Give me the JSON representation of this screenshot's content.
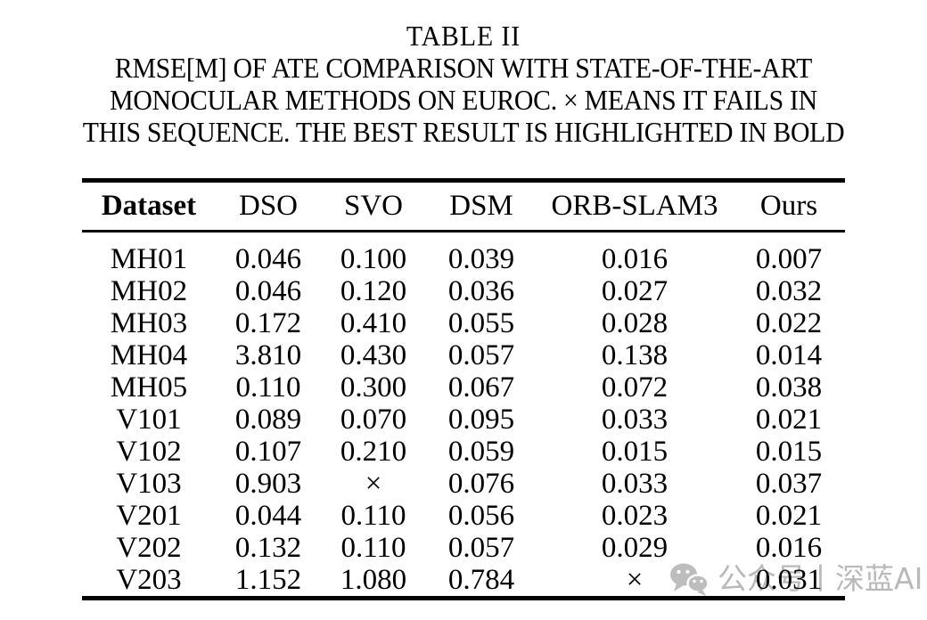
{
  "caption": {
    "label": "TABLE II",
    "line1": "RMSE[M] OF ATE COMPARISON WITH STATE-OF-THE-ART",
    "line2": "MONOCULAR METHODS ON EUROC. × MEANS IT FAILS IN",
    "line3": "THIS SEQUENCE. THE BEST RESULT IS HIGHLIGHTED IN BOLD"
  },
  "table": {
    "columns": [
      {
        "label": "Dataset"
      },
      {
        "label": "DSO"
      },
      {
        "label": "SVO"
      },
      {
        "label": "DSM"
      },
      {
        "label": "ORB-SLAM3"
      },
      {
        "label": "Ours"
      }
    ],
    "rows": [
      {
        "cells": [
          {
            "text": "MH01"
          },
          {
            "text": "0.046"
          },
          {
            "text": "0.100"
          },
          {
            "text": "0.039"
          },
          {
            "text": "0.016"
          },
          {
            "text": "0.007",
            "bold": true
          }
        ]
      },
      {
        "cells": [
          {
            "text": "MH02"
          },
          {
            "text": "0.046"
          },
          {
            "text": "0.120"
          },
          {
            "text": "0.036"
          },
          {
            "text": "0.027",
            "bold": true
          },
          {
            "text": "0.032"
          }
        ]
      },
      {
        "cells": [
          {
            "text": "MH03"
          },
          {
            "text": "0.172"
          },
          {
            "text": "0.410"
          },
          {
            "text": "0.055"
          },
          {
            "text": "0.028"
          },
          {
            "text": "0.022",
            "bold": true
          }
        ]
      },
      {
        "cells": [
          {
            "text": "MH04"
          },
          {
            "text": "3.810"
          },
          {
            "text": "0.430"
          },
          {
            "text": "0.057"
          },
          {
            "text": "0.138"
          },
          {
            "text": "0.014",
            "bold": true
          }
        ]
      },
      {
        "cells": [
          {
            "text": "MH05"
          },
          {
            "text": "0.110"
          },
          {
            "text": "0.300"
          },
          {
            "text": "0.067"
          },
          {
            "text": "0.072"
          },
          {
            "text": "0.038",
            "bold": true
          }
        ]
      },
      {
        "cells": [
          {
            "text": "V101"
          },
          {
            "text": "0.089"
          },
          {
            "text": "0.070"
          },
          {
            "text": "0.095"
          },
          {
            "text": "0.033"
          },
          {
            "text": "0.021",
            "bold": true
          }
        ]
      },
      {
        "cells": [
          {
            "text": "V102"
          },
          {
            "text": "0.107"
          },
          {
            "text": "0.210"
          },
          {
            "text": "0.059"
          },
          {
            "text": "0.015"
          },
          {
            "text": "0.015",
            "bold": true
          }
        ]
      },
      {
        "cells": [
          {
            "text": "V103"
          },
          {
            "text": "0.903"
          },
          {
            "text": "×"
          },
          {
            "text": "0.076"
          },
          {
            "text": "0.033",
            "bold": true
          },
          {
            "text": "0.037"
          }
        ]
      },
      {
        "cells": [
          {
            "text": "V201"
          },
          {
            "text": "0.044"
          },
          {
            "text": "0.110"
          },
          {
            "text": "0.056"
          },
          {
            "text": "0.023"
          },
          {
            "text": "0.021",
            "bold": true
          }
        ]
      },
      {
        "cells": [
          {
            "text": "V202"
          },
          {
            "text": "0.132"
          },
          {
            "text": "0.110"
          },
          {
            "text": "0.057"
          },
          {
            "text": "0.029"
          },
          {
            "text": "0.016",
            "bold": true
          }
        ]
      },
      {
        "cells": [
          {
            "text": "V203"
          },
          {
            "text": "1.152"
          },
          {
            "text": "1.080"
          },
          {
            "text": "0.784"
          },
          {
            "text": "×"
          },
          {
            "text": "0.031",
            "bold": true
          }
        ]
      }
    ]
  },
  "watermark": {
    "text": "公众号丨深蓝AI",
    "color": "#b9b9b9"
  }
}
